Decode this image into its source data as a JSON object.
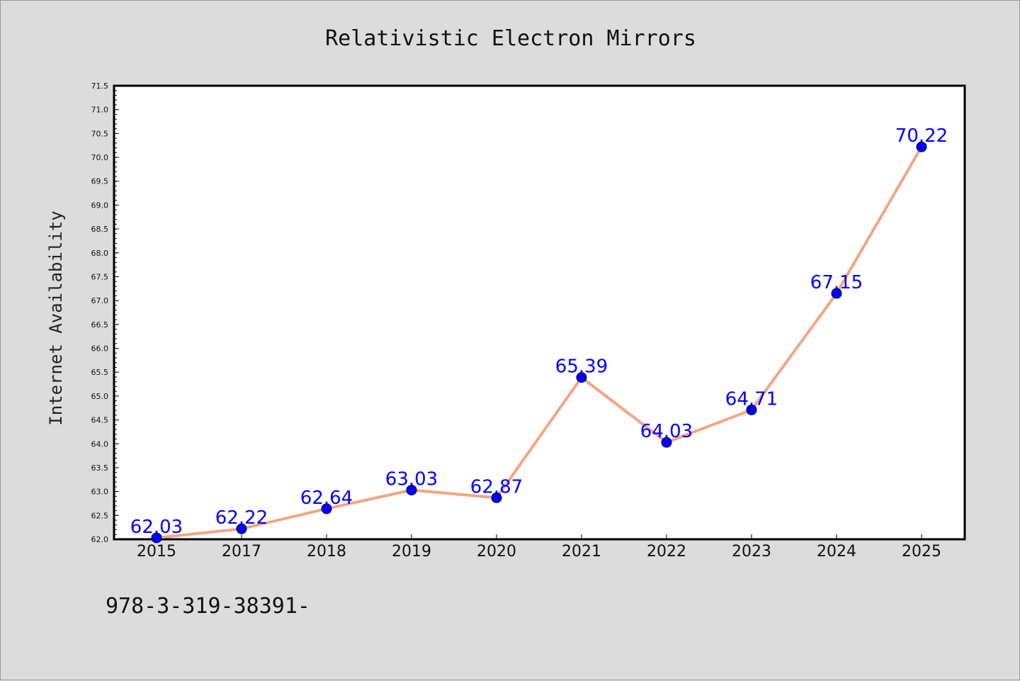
{
  "chart_data": {
    "type": "line",
    "title": "Relativistic Electron Mirrors",
    "xlabel": "",
    "ylabel": "Internet Availability",
    "categories": [
      "2015",
      "2017",
      "2018",
      "2019",
      "2020",
      "2021",
      "2022",
      "2023",
      "2024",
      "2025"
    ],
    "values": [
      62.03,
      62.22,
      62.64,
      63.03,
      62.87,
      65.39,
      64.03,
      64.71,
      67.15,
      70.22
    ],
    "data_labels": [
      "62.03",
      "62.22",
      "62.64",
      "63.03",
      "62.87",
      "65.39",
      "64.03",
      "64.71",
      "67.15",
      "70.22"
    ],
    "ylim": [
      62.0,
      71.5
    ],
    "yticks": [
      "62.0",
      "62.5",
      "63.0",
      "63.5",
      "64.0",
      "64.5",
      "65.0",
      "65.5",
      "66.0",
      "66.5",
      "67.0",
      "67.5",
      "68.0",
      "68.5",
      "69.0",
      "69.5",
      "70.0",
      "70.5",
      "71.0",
      "71.5"
    ],
    "grid": false,
    "legend": "none",
    "colors": {
      "line": "#f4a582",
      "marker": "#0000ff",
      "label": "#0000ff",
      "background": "#dcdcdc",
      "plot_area": "#ffffff"
    }
  },
  "footer_text": "978-3-319-38391-"
}
